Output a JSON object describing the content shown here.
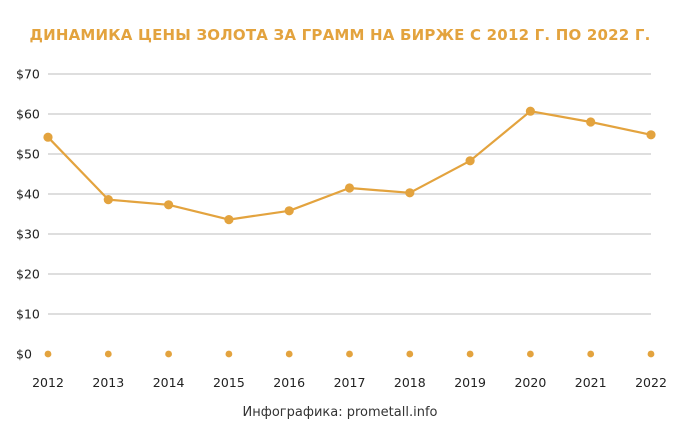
{
  "chart_data": {
    "type": "line",
    "title": "ДИНАМИКА ЦЕНЫ ЗОЛОТА ЗА ГРАММ НА БИРЖЕ С 2012 Г. ПО 2022 Г.",
    "categories": [
      "2012",
      "2013",
      "2014",
      "2015",
      "2016",
      "2017",
      "2018",
      "2019",
      "2020",
      "2021",
      "2022"
    ],
    "series": [
      {
        "values": [
          54.2,
          38.6,
          37.3,
          33.6,
          35.8,
          41.5,
          40.3,
          48.3,
          60.7,
          58.0,
          54.8
        ]
      },
      {
        "values": [
          0,
          0,
          0,
          0,
          0,
          0,
          0,
          0,
          0,
          0,
          0
        ]
      }
    ],
    "y_ticks": [
      "$0",
      "$10",
      "$20",
      "$30",
      "$40",
      "$50",
      "$60",
      "$70"
    ],
    "ylim": [
      0,
      70
    ],
    "grid": true,
    "line_color": "#e3a33e",
    "grid_color": "#d4d4d4"
  },
  "source": "Инфографика: prometall.info"
}
